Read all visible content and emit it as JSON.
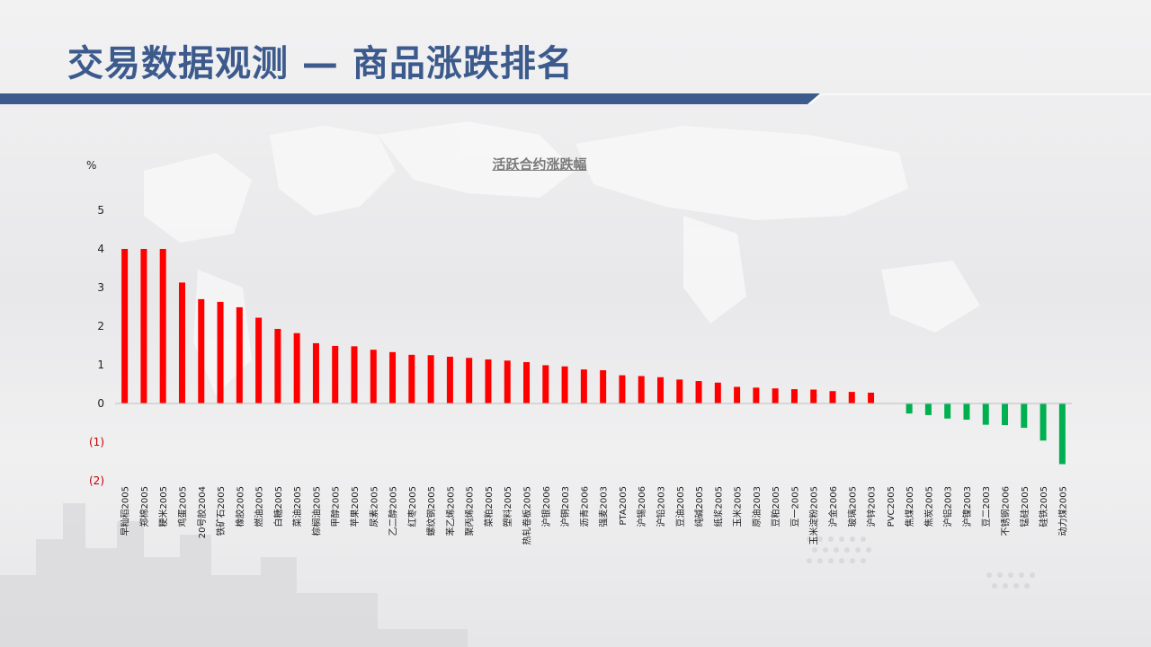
{
  "slide": {
    "title": "交易数据观测 — 商品涨跌排名",
    "title_color": "#3c5a8c"
  },
  "chart_data": {
    "type": "bar",
    "title": "活跃合约涨跌幅",
    "ylabel": "%",
    "ylim": [
      -2,
      5
    ],
    "yticks": [
      {
        "value": 5,
        "label": "5"
      },
      {
        "value": 4,
        "label": "4"
      },
      {
        "value": 3,
        "label": "3"
      },
      {
        "value": 2,
        "label": "2"
      },
      {
        "value": 1,
        "label": "1"
      },
      {
        "value": 0,
        "label": "0"
      },
      {
        "value": -1,
        "label": "(1)"
      },
      {
        "value": -2,
        "label": "(2)"
      }
    ],
    "positive_color": "#ff0000",
    "negative_color": "#00b050",
    "negative_tick_color": "#c00000",
    "grid": false,
    "categories": [
      "早籼稻2005",
      "郑棉2005",
      "粳米2005",
      "鸡蛋2005",
      "20号胶2004",
      "铁矿石2005",
      "橡胶2005",
      "燃油2005",
      "白糖2005",
      "菜油2005",
      "棕榈油2005",
      "甲醇2005",
      "苹果2005",
      "尿素2005",
      "乙二醇2005",
      "红枣2005",
      "螺纹钢2005",
      "苯乙烯2005",
      "聚丙烯2005",
      "菜粕2005",
      "塑料2005",
      "热轧卷板2005",
      "沪银2006",
      "沪铜2003",
      "沥青2006",
      "强麦2003",
      "PTA2005",
      "沪锡2006",
      "沪铅2003",
      "豆油2005",
      "纯碱2005",
      "纸浆2005",
      "玉米2005",
      "原油2003",
      "豆粕2005",
      "豆一2005",
      "玉米淀粉2005",
      "沪金2006",
      "玻璃2005",
      "沪锌2003",
      "PVC2005",
      "焦煤2005",
      "焦炭2005",
      "沪铝2003",
      "沪镍2003",
      "豆二2003",
      "不锈钢2006",
      "锰硅2005",
      "硅铁2005",
      "动力煤2005"
    ],
    "values": [
      4.0,
      4.0,
      4.0,
      3.13,
      2.7,
      2.63,
      2.49,
      2.22,
      1.93,
      1.82,
      1.56,
      1.49,
      1.48,
      1.39,
      1.33,
      1.26,
      1.25,
      1.21,
      1.18,
      1.14,
      1.11,
      1.07,
      0.99,
      0.96,
      0.88,
      0.86,
      0.73,
      0.71,
      0.68,
      0.62,
      0.58,
      0.54,
      0.43,
      0.41,
      0.39,
      0.37,
      0.36,
      0.32,
      0.3,
      0.28,
      0.0,
      -0.26,
      -0.3,
      -0.39,
      -0.42,
      -0.55,
      -0.56,
      -0.63,
      -0.96,
      -1.57
    ]
  }
}
